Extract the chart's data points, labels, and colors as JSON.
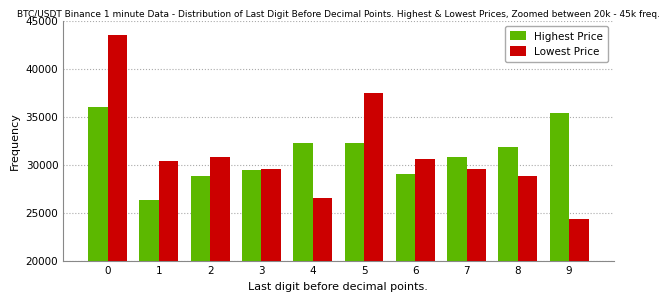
{
  "title": "BTC/USDT Binance 1 minute Data - Distribution of Last Digit Before Decimal Points. Highest & Lowest Prices, Zoomed between 20k - 45k freq.",
  "xlabel": "Last digit before decimal points.",
  "ylabel": "Frequency",
  "categories": [
    0,
    1,
    2,
    3,
    4,
    5,
    6,
    7,
    8,
    9
  ],
  "highest_price": [
    36000,
    26300,
    28800,
    29400,
    32200,
    32300,
    29000,
    30800,
    31800,
    35400
  ],
  "lowest_price": [
    43500,
    30400,
    30800,
    29500,
    26500,
    37500,
    30600,
    29500,
    28800,
    24300
  ],
  "color_highest": "#5cb800",
  "color_lowest": "#cc0000",
  "legend_highest": "Highest Price",
  "legend_lowest": "Lowest Price",
  "ylim": [
    20000,
    45000
  ],
  "yticks": [
    20000,
    25000,
    30000,
    35000,
    40000,
    45000
  ],
  "bg_color": "#ffffff",
  "plot_bg_color": "#ffffff",
  "grid_color": "#aaaaaa",
  "title_fontsize": 6.5,
  "label_fontsize": 8,
  "tick_fontsize": 7.5,
  "legend_fontsize": 7.5,
  "bar_width": 0.38
}
